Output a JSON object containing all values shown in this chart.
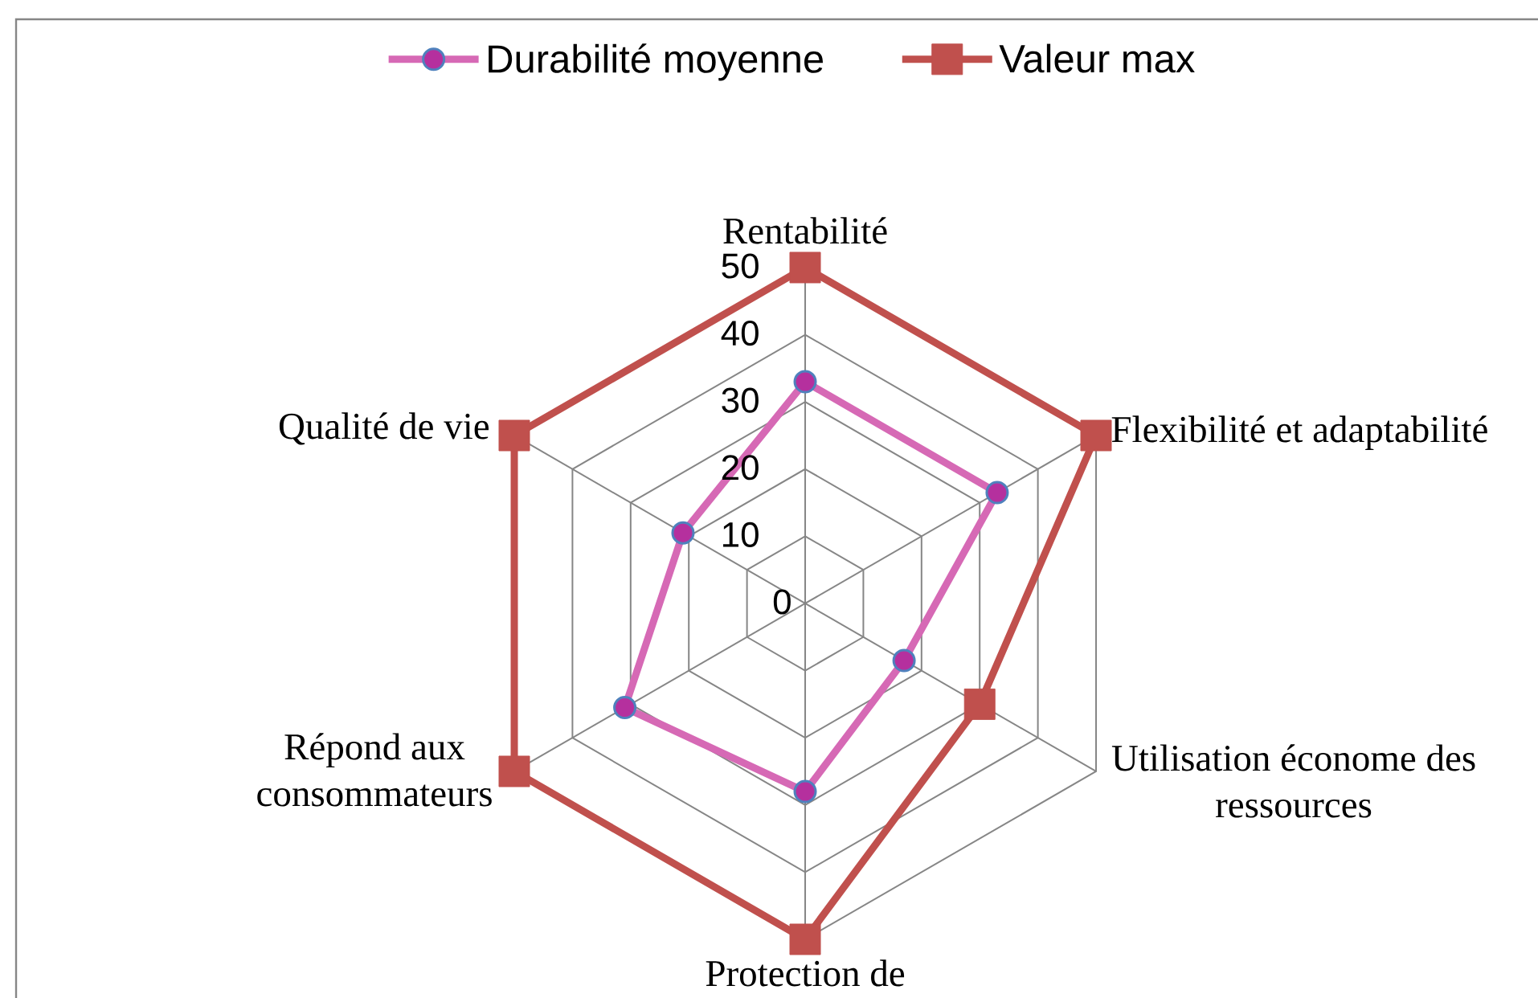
{
  "chart_data": {
    "type": "radar",
    "categories": [
      "Rentabilité",
      "Flexibilité et adaptabilité",
      "Utilisation économe des ressources",
      "Protection de",
      "Répond aux consommateurs",
      "Qualité de vie"
    ],
    "series": [
      {
        "name": "Durabilité moyenne",
        "color": "#d669b5",
        "marker": "circle",
        "values": [
          33,
          33,
          17,
          28,
          31,
          21
        ]
      },
      {
        "name": "Valeur max",
        "color": "#c0504d",
        "marker": "square",
        "values": [
          50,
          50,
          30,
          50,
          50,
          50
        ]
      }
    ],
    "ylim": [
      0,
      50
    ],
    "yticks": [
      0,
      10,
      20,
      30,
      40,
      50
    ],
    "grid": true,
    "legend": "top"
  }
}
